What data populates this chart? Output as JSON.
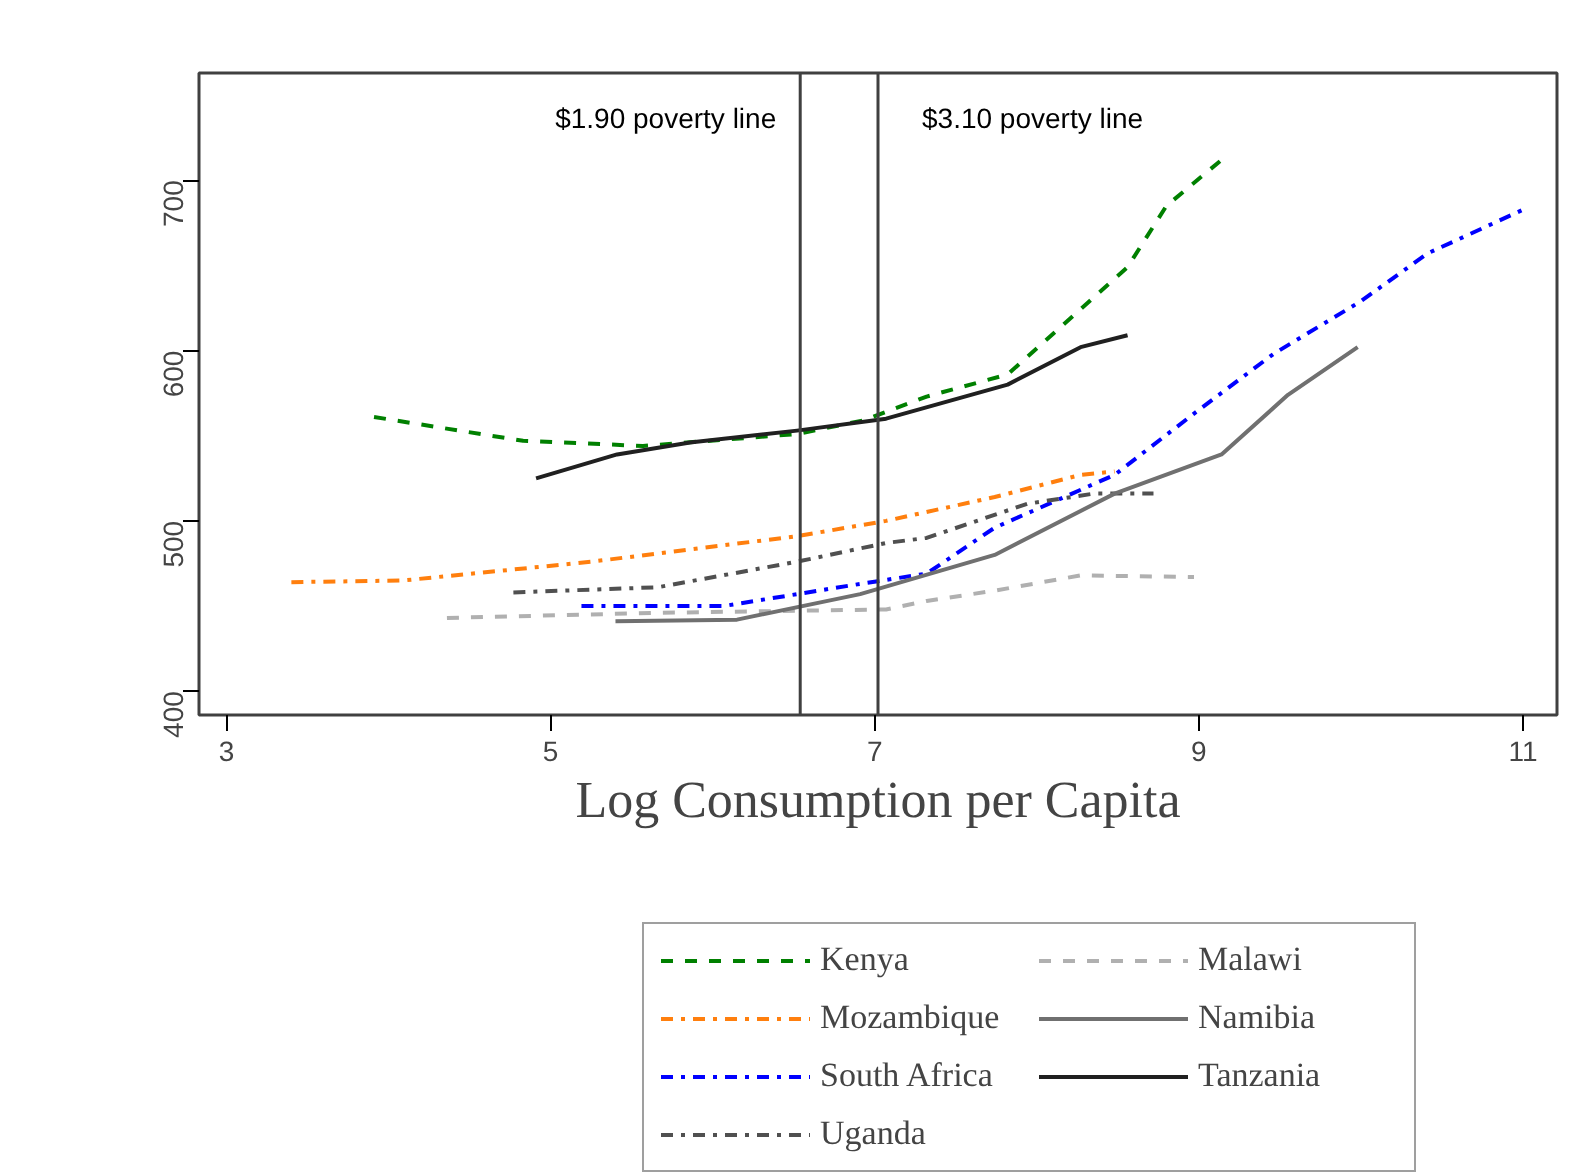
{
  "chart_data": {
    "type": "line",
    "xlabel": "Log Consumption per Capita",
    "xlim": [
      2.83,
      11.21
    ],
    "ylim": [
      386,
      763
    ],
    "xticks": [
      3,
      5,
      7,
      9,
      11
    ],
    "yticks": [
      400,
      500,
      600,
      700
    ],
    "grid": false,
    "legend": "bottom",
    "marker": "none",
    "ref_lines": [
      {
        "axis": "x",
        "value": 6.54,
        "label": "$1.90 poverty line",
        "color": "#404040"
      },
      {
        "axis": "x",
        "value": 7.02,
        "label": "$3.10 poverty line",
        "color": "#404040"
      }
    ],
    "series": [
      {
        "name": "Kenya",
        "color": "#008000",
        "line_style": "dashed",
        "x": [
          3.91,
          4.83,
          5.57,
          6.52,
          6.93,
          7.32,
          7.82,
          8.15,
          8.56,
          8.8,
          9.14
        ],
        "values": [
          561,
          547,
          544,
          551,
          559,
          573,
          586,
          614,
          649,
          685,
          712
        ]
      },
      {
        "name": "Mozambique",
        "color": "#ff7f0e",
        "line_style": "dashdot",
        "x": [
          3.4,
          4.09,
          5.25,
          6.52,
          7.07,
          7.74,
          8.27,
          8.48
        ],
        "values": [
          464,
          465,
          476,
          491,
          500,
          514,
          527,
          529
        ]
      },
      {
        "name": "South Africa",
        "color": "#0000ff",
        "line_style": "dashdot",
        "x": [
          5.19,
          6.07,
          6.91,
          7.32,
          7.74,
          8.48,
          8.97,
          9.46,
          10.0,
          10.41,
          11.03
        ],
        "values": [
          450,
          450,
          463,
          469,
          496,
          527,
          563,
          598,
          629,
          657,
          684
        ]
      },
      {
        "name": "Uganda",
        "color": "#505050",
        "line_style": "dashdot",
        "x": [
          4.77,
          5.66,
          6.52,
          7.07,
          7.32,
          7.94,
          8.35,
          8.72
        ],
        "values": [
          458,
          461,
          476,
          487,
          490,
          510,
          516,
          516
        ]
      },
      {
        "name": "Malawi",
        "color": "#b0b0b0",
        "line_style": "dashed",
        "x": [
          4.36,
          5.66,
          7.07,
          7.32,
          7.74,
          8.27,
          8.97
        ],
        "values": [
          443,
          446,
          448,
          453,
          459,
          468,
          467
        ]
      },
      {
        "name": "Namibia",
        "color": "#707070",
        "line_style": "solid",
        "x": [
          5.4,
          6.15,
          6.91,
          7.74,
          8.48,
          9.14,
          9.55,
          9.98
        ],
        "values": [
          441,
          442,
          457,
          480,
          516,
          539,
          574,
          602
        ]
      },
      {
        "name": "Tanzania",
        "color": "#202020",
        "line_style": "solid",
        "x": [
          4.91,
          5.41,
          5.86,
          6.52,
          7.07,
          7.82,
          8.27,
          8.56
        ],
        "values": [
          525,
          539,
          546,
          553,
          560,
          580,
          602,
          609
        ]
      }
    ]
  }
}
